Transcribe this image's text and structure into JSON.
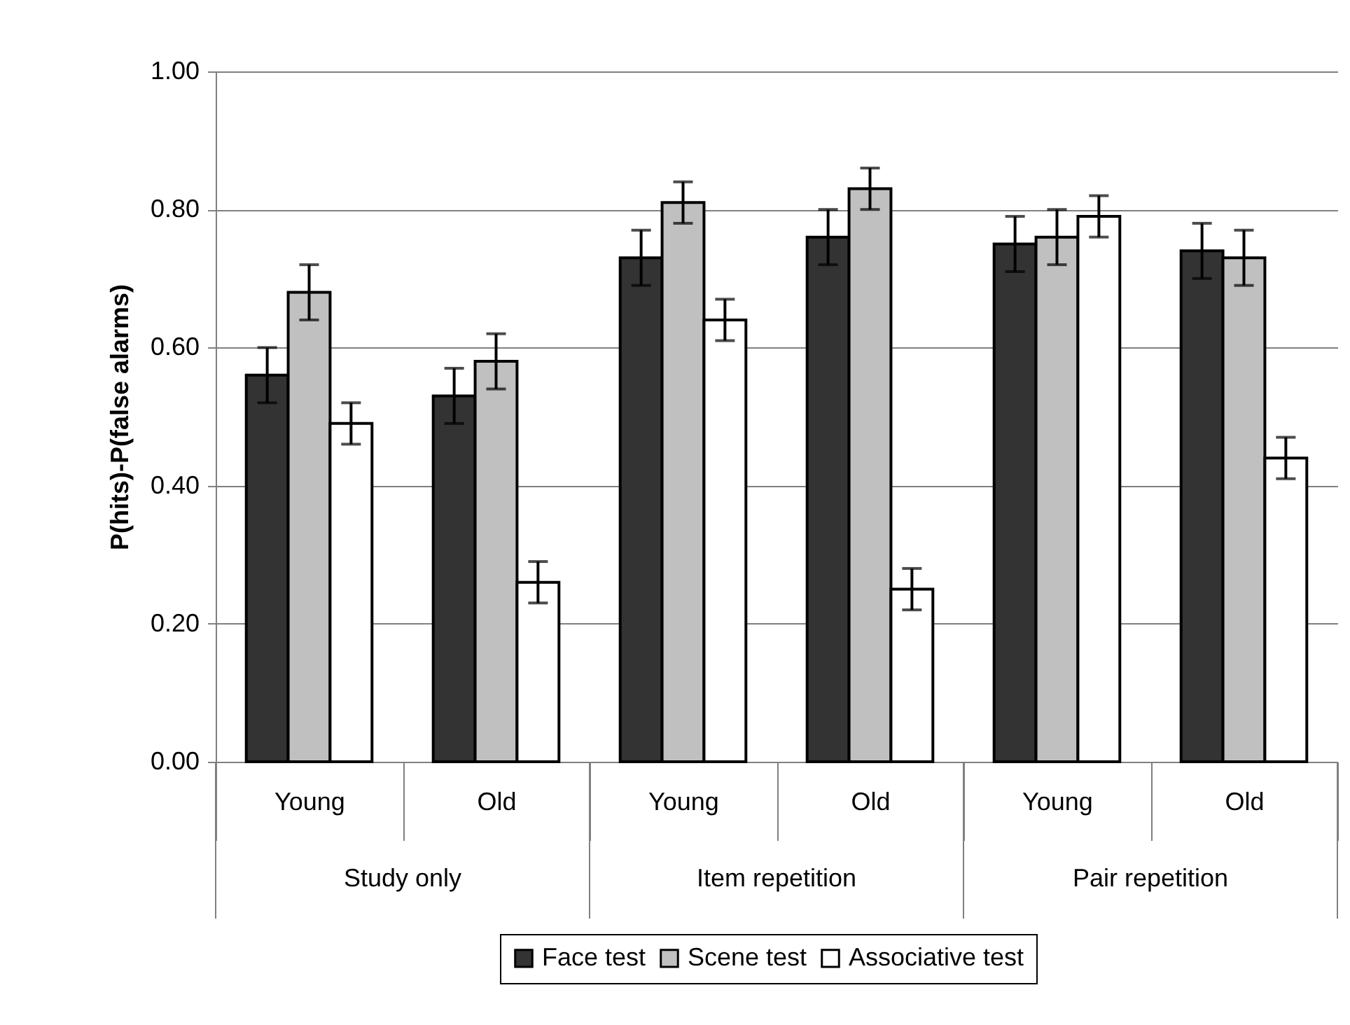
{
  "chart_data": {
    "type": "bar",
    "ylabel": "P(hits)-P(false alarms)",
    "categories": [
      "Young",
      "Old",
      "Young",
      "Old",
      "Young",
      "Old"
    ],
    "annotations": [
      "Study only",
      "Item repetition",
      "Pair repetition"
    ],
    "series": [
      {
        "name": "Face test",
        "color": "#333333",
        "values": [
          0.56,
          0.53,
          0.73,
          0.76,
          0.75,
          0.74
        ],
        "errors": [
          0.04,
          0.04,
          0.04,
          0.04,
          0.04,
          0.04
        ]
      },
      {
        "name": "Scene test",
        "color": "#c0c0c0",
        "values": [
          0.68,
          0.58,
          0.81,
          0.83,
          0.76,
          0.73
        ],
        "errors": [
          0.04,
          0.04,
          0.03,
          0.03,
          0.04,
          0.04
        ]
      },
      {
        "name": "Associative test",
        "color": "#ffffff",
        "values": [
          0.49,
          0.26,
          0.64,
          0.25,
          0.79,
          0.44
        ],
        "errors": [
          0.03,
          0.03,
          0.03,
          0.03,
          0.03,
          0.03
        ]
      }
    ],
    "ylim": [
      0,
      1
    ],
    "yticks": [
      {
        "value": 0,
        "label": "0.00"
      },
      {
        "value": 0.2,
        "label": "0.20"
      },
      {
        "value": 0.4,
        "label": "0.40"
      },
      {
        "value": 0.6,
        "label": "0.60"
      },
      {
        "value": 0.8,
        "label": "0.80"
      },
      {
        "value": 1,
        "label": "1.00"
      }
    ],
    "grid": "y",
    "legend": "bottom"
  }
}
